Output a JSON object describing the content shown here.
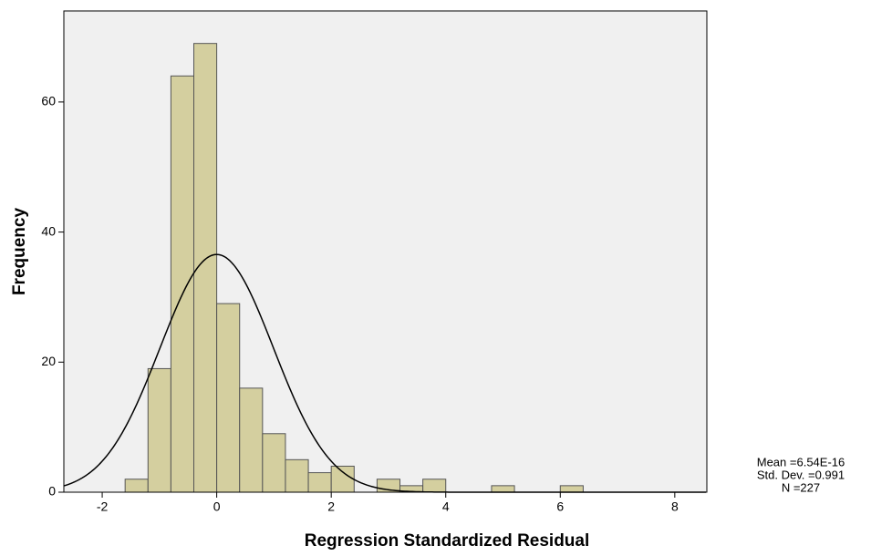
{
  "chart_data": {
    "type": "histogram",
    "x_label": "Regression Standardized Residual",
    "y_label": "Frequency",
    "bins": [
      -1.6,
      -1.2,
      -0.8,
      -0.4,
      0,
      0.4,
      0.8,
      1.2,
      1.6,
      2.0,
      2.4,
      2.8,
      3.2,
      3.6,
      4.0,
      4.4,
      4.8,
      5.2,
      5.6,
      6.0,
      6.4
    ],
    "values": [
      2,
      19,
      64,
      69,
      29,
      16,
      9,
      5,
      3,
      4,
      0,
      2,
      1,
      2,
      0,
      0,
      1,
      0,
      0,
      1
    ],
    "color": "#d4cf9f",
    "xlim": [
      -2.67,
      8.56
    ],
    "xticks": [
      -2,
      0,
      2,
      4,
      6,
      8
    ],
    "ylim": [
      0,
      74
    ],
    "yticks": [
      0,
      20,
      40,
      60
    ],
    "normal_curve": {
      "mean": 6.54e-16,
      "std_dev": 0.991,
      "n": 227,
      "labels": [
        "Mean =6.54E-16",
        "Std. Dev. =0.991",
        "N =227"
      ]
    }
  }
}
